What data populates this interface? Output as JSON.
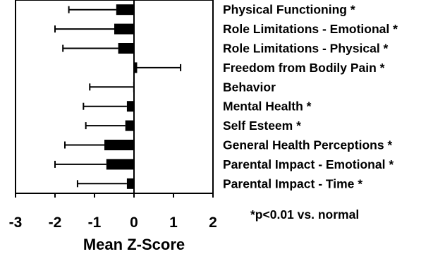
{
  "chart_data": {
    "type": "bar",
    "orientation": "horizontal",
    "categories": [
      "Physical Functioning *",
      "Role Limitations - Emotional *",
      "Role Limitations - Physical *",
      "Freedom from Bodily Pain *",
      "Behavior",
      "Mental Health *",
      "Self Esteem *",
      "General Health Perceptions *",
      "Parental Impact - Emotional *",
      "Parental Impact - Time *"
    ],
    "values": [
      -0.45,
      -0.5,
      -0.4,
      0.08,
      -0.02,
      -0.18,
      -0.22,
      -0.75,
      -0.7,
      -0.18
    ],
    "error_bars": [
      1.2,
      1.5,
      1.4,
      1.1,
      1.1,
      1.1,
      1.0,
      1.0,
      1.3,
      1.25
    ],
    "xlabel": "Mean Z-Score",
    "ylabel": "",
    "xlim": [
      -3,
      2
    ],
    "xticks": [
      "-3",
      "-2",
      "-1",
      "0",
      "1",
      "2"
    ],
    "annotation": "*p<0.01 vs. normal",
    "bar_color": "#000000",
    "grid": false
  }
}
